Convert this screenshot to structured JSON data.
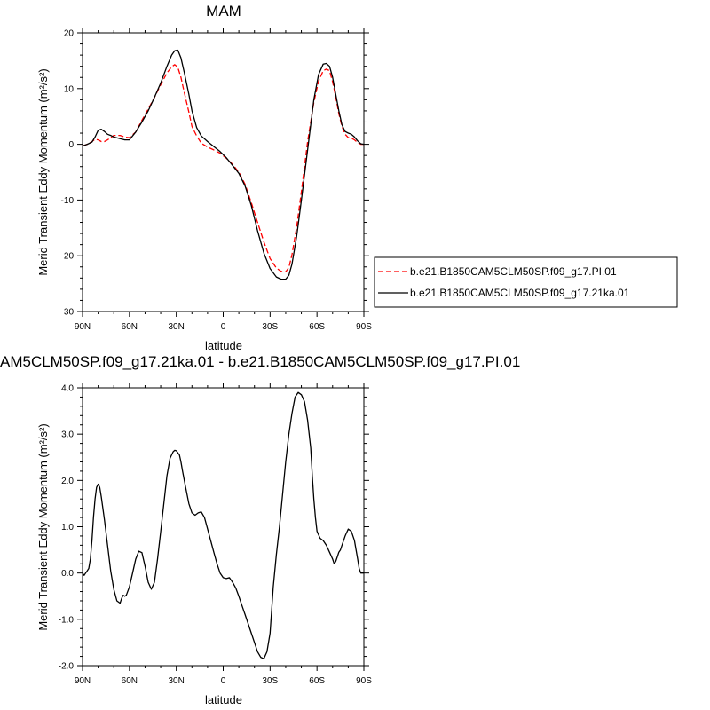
{
  "chart_data": [
    {
      "type": "line",
      "title": "MAM",
      "xlabel": "latitude",
      "ylabel": "Merid Transient Eddy Momentum (m²/s²)",
      "xlim": [
        90,
        -90
      ],
      "ylim": [
        -30,
        20
      ],
      "x_ticks": [
        {
          "value": 90,
          "label": "90N"
        },
        {
          "value": 60,
          "label": "60N"
        },
        {
          "value": 30,
          "label": "30N"
        },
        {
          "value": 0,
          "label": "0"
        },
        {
          "value": -30,
          "label": "30S"
        },
        {
          "value": -60,
          "label": "60S"
        },
        {
          "value": -90,
          "label": "90S"
        }
      ],
      "y_ticks": [
        {
          "value": 20,
          "label": "20"
        },
        {
          "value": 10,
          "label": "10"
        },
        {
          "value": 0,
          "label": "0"
        },
        {
          "value": -10,
          "label": "-10"
        },
        {
          "value": -20,
          "label": "-20"
        },
        {
          "value": -30,
          "label": "-30"
        }
      ],
      "legend_placement": "right",
      "series": [
        {
          "name": "b.e21.B1850CAM5CLM50SP.f09_g17.PI.01",
          "color": "#ff0000",
          "style": "dashed",
          "x": [
            90,
            87,
            84,
            82,
            80,
            78,
            76,
            74,
            72,
            70,
            66,
            63,
            60,
            56,
            52,
            48,
            44,
            40,
            36,
            33,
            31,
            29,
            27,
            25,
            22,
            20,
            17,
            14,
            10,
            6,
            2,
            -2,
            -6,
            -10,
            -14,
            -18,
            -22,
            -26,
            -30,
            -34,
            -37,
            -40,
            -42,
            -44,
            -47,
            -50,
            -54,
            -58,
            -61,
            -64,
            -66,
            -68,
            -70,
            -72,
            -74,
            -76,
            -78,
            -80,
            -82,
            -84,
            -86,
            -88,
            -90
          ],
          "values": [
            -0.3,
            0,
            0.5,
            0.9,
            0.8,
            0.5,
            0.5,
            0.8,
            1.2,
            1.6,
            1.6,
            1.3,
            1.2,
            2.2,
            4.3,
            6.3,
            8.4,
            10.7,
            12.8,
            13.9,
            14.3,
            13.8,
            12,
            9.4,
            5.8,
            3.2,
            1.5,
            0.2,
            -0.5,
            -1,
            -1.6,
            -2.5,
            -3.6,
            -5,
            -7.2,
            -10.5,
            -14,
            -17.5,
            -20.5,
            -22.2,
            -22.8,
            -22.9,
            -22.1,
            -19.8,
            -14.8,
            -8.5,
            0.5,
            7.5,
            11.3,
            13.2,
            13.5,
            13.2,
            11.2,
            8.5,
            5.5,
            3.2,
            1.8,
            1.2,
            1.1,
            0.8,
            0.3,
            0,
            0
          ]
        },
        {
          "name": "b.e21.B1850CAM5CLM50SP.f09_g17.21ka.01",
          "color": "#000000",
          "style": "solid",
          "x": [
            90,
            87,
            84,
            82,
            80,
            78,
            76,
            74,
            72,
            70,
            66,
            63,
            60,
            56,
            52,
            48,
            44,
            40,
            36,
            33,
            31,
            29,
            27,
            25,
            22,
            20,
            17,
            14,
            10,
            6,
            2,
            -2,
            -6,
            -10,
            -14,
            -18,
            -22,
            -26,
            -30,
            -34,
            -37,
            -40,
            -42,
            -44,
            -47,
            -50,
            -54,
            -58,
            -61,
            -64,
            -66,
            -68,
            -70,
            -72,
            -74,
            -76,
            -78,
            -80,
            -82,
            -84,
            -86,
            -88,
            -90
          ],
          "values": [
            -0.3,
            0,
            0.4,
            1.3,
            2.5,
            2.7,
            2.3,
            1.8,
            1.6,
            1.3,
            1,
            0.8,
            0.8,
            2.2,
            4,
            6,
            8.4,
            11,
            14,
            16,
            16.8,
            16.9,
            15.5,
            13,
            9,
            6,
            3,
            1.5,
            0.5,
            -0.4,
            -1.3,
            -2.4,
            -3.8,
            -5.2,
            -7.5,
            -11,
            -15.5,
            -19.5,
            -22.3,
            -23.8,
            -24.2,
            -24.2,
            -23.5,
            -21.5,
            -16.5,
            -10,
            -1,
            8,
            12.5,
            14.4,
            14.5,
            14,
            12,
            9,
            6,
            3.5,
            2.3,
            2,
            1.8,
            1.3,
            0.6,
            0.1,
            0
          ]
        }
      ]
    },
    {
      "type": "line",
      "title": "AM5CLM50SP.f09_g17.21ka.01 - b.e21.B1850CAM5CLM50SP.f09_g17.PI.01",
      "xlabel": "latitude",
      "ylabel": "Merid Transient Eddy Momentum (m²/s²)",
      "xlim": [
        90,
        -90
      ],
      "ylim": [
        -2,
        4
      ],
      "x_ticks": [
        {
          "value": 90,
          "label": "90N"
        },
        {
          "value": 60,
          "label": "60N"
        },
        {
          "value": 30,
          "label": "30N"
        },
        {
          "value": 0,
          "label": "0"
        },
        {
          "value": -30,
          "label": "30S"
        },
        {
          "value": -60,
          "label": "60S"
        },
        {
          "value": -90,
          "label": "90S"
        }
      ],
      "y_ticks": [
        {
          "value": 4,
          "label": "4.0"
        },
        {
          "value": 3,
          "label": "3.0"
        },
        {
          "value": 2,
          "label": "2.0"
        },
        {
          "value": 1,
          "label": "1.0"
        },
        {
          "value": 0,
          "label": "0.0"
        },
        {
          "value": -1,
          "label": "-1.0"
        },
        {
          "value": -2,
          "label": "-2.0"
        }
      ],
      "series": [
        {
          "color": "#000000",
          "style": "solid",
          "x": [
            90,
            89,
            88,
            87,
            86,
            85,
            84,
            83,
            82,
            81,
            80,
            79,
            78,
            77,
            76,
            74,
            72,
            70,
            68,
            66,
            65,
            64,
            63,
            62,
            60,
            58,
            56,
            54,
            52,
            50,
            48,
            46,
            44,
            42,
            40,
            38,
            36,
            34,
            32,
            31,
            30,
            28,
            27,
            26,
            24,
            22,
            20,
            18,
            16,
            14,
            12,
            10,
            8,
            6,
            4,
            2,
            0,
            -2,
            -4,
            -6,
            -8,
            -10,
            -12,
            -14,
            -16,
            -18,
            -20,
            -22,
            -24,
            -26,
            -28,
            -30,
            -31,
            -32,
            -34,
            -36,
            -38,
            -40,
            -42,
            -44,
            -46,
            -48,
            -50,
            -52,
            -54,
            -56,
            -57,
            -58,
            -59,
            -60,
            -62,
            -64,
            -66,
            -68,
            -70,
            -71,
            -72,
            -73,
            -74,
            -75,
            -76,
            -78,
            -80,
            -82,
            -84,
            -85,
            -86,
            -87,
            -88,
            -89,
            -90
          ],
          "values": [
            0,
            -0.05,
            0,
            0.05,
            0.1,
            0.3,
            0.7,
            1.2,
            1.6,
            1.85,
            1.92,
            1.85,
            1.65,
            1.4,
            1.15,
            0.6,
            0.05,
            -0.35,
            -0.6,
            -0.65,
            -0.55,
            -0.48,
            -0.5,
            -0.48,
            -0.3,
            0,
            0.3,
            0.47,
            0.44,
            0.15,
            -0.2,
            -0.35,
            -0.2,
            0.3,
            0.9,
            1.5,
            2.1,
            2.48,
            2.62,
            2.65,
            2.64,
            2.55,
            2.4,
            2.2,
            1.85,
            1.5,
            1.3,
            1.25,
            1.3,
            1.32,
            1.2,
            0.95,
            0.7,
            0.45,
            0.2,
            0,
            -0.1,
            -0.12,
            -0.1,
            -0.2,
            -0.32,
            -0.5,
            -0.7,
            -0.9,
            -1.1,
            -1.3,
            -1.5,
            -1.7,
            -1.82,
            -1.85,
            -1.7,
            -1.3,
            -0.8,
            -0.3,
            0.4,
            1,
            1.7,
            2.4,
            3,
            3.45,
            3.8,
            3.9,
            3.85,
            3.7,
            3.3,
            2.7,
            2.1,
            1.6,
            1.2,
            0.9,
            0.75,
            0.7,
            0.6,
            0.45,
            0.3,
            0.2,
            0.25,
            0.35,
            0.45,
            0.5,
            0.6,
            0.8,
            0.95,
            0.9,
            0.7,
            0.5,
            0.3,
            0.1,
            0,
            0,
            0
          ]
        }
      ]
    }
  ]
}
